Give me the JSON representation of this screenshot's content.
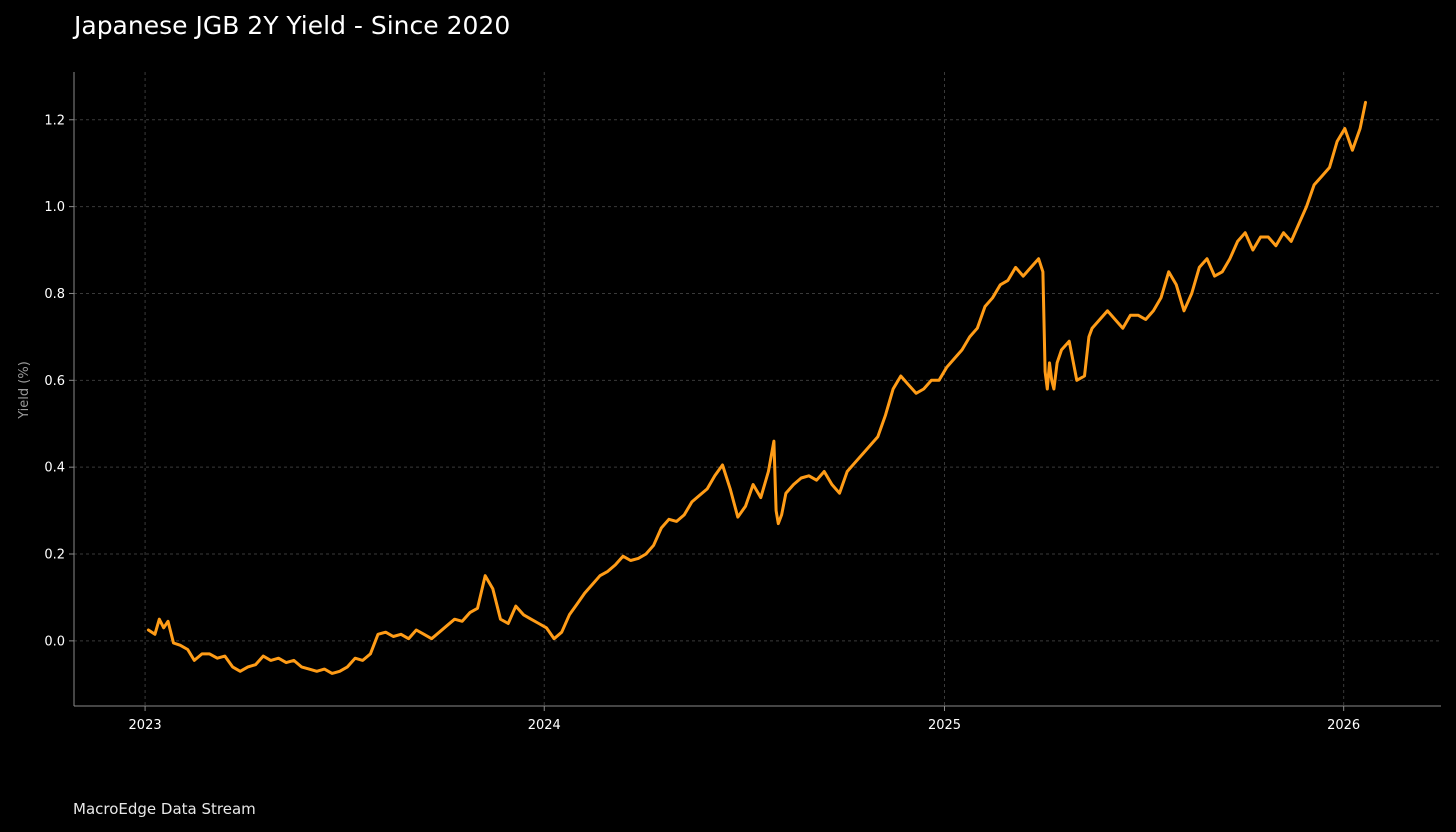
{
  "header": {
    "title": "Japanese JGB 2Y Yield - Since 2020"
  },
  "footer": {
    "source": "MacroEdge Data Stream"
  },
  "colors": {
    "background": "#000000",
    "line": "#FF9C17",
    "axis": "#8a8a8a",
    "grid": "#3a3a3a",
    "text": "#ffffff"
  },
  "chart_data": {
    "type": "line",
    "title": "Japanese JGB 2Y Yield - Since 2020",
    "xlabel": "",
    "ylabel": "Yield (%)",
    "xlim": [
      "2022-10-28",
      "2026-03-31"
    ],
    "ylim": [
      -0.15,
      1.31
    ],
    "x_ticks": [
      "2023",
      "2024",
      "2025",
      "2026"
    ],
    "y_ticks": [
      "0.0",
      "0.2",
      "0.4",
      "0.6",
      "0.8",
      "1.0",
      "1.2"
    ],
    "grid": true,
    "legend": "none",
    "series": [
      {
        "x": [
          "2023-01-04",
          "2023-01-10",
          "2023-01-14",
          "2023-01-18",
          "2023-01-22",
          "2023-01-27",
          "2023-02-02",
          "2023-02-09",
          "2023-02-15",
          "2023-02-22",
          "2023-03-01",
          "2023-03-08",
          "2023-03-15",
          "2023-03-22",
          "2023-03-29",
          "2023-04-05",
          "2023-04-12",
          "2023-04-19",
          "2023-04-26",
          "2023-05-03",
          "2023-05-10",
          "2023-05-17",
          "2023-05-24",
          "2023-05-31",
          "2023-06-07",
          "2023-06-14",
          "2023-06-21",
          "2023-06-28",
          "2023-07-05",
          "2023-07-12",
          "2023-07-19",
          "2023-07-26",
          "2023-08-02",
          "2023-08-09",
          "2023-08-16",
          "2023-08-23",
          "2023-08-30",
          "2023-09-06",
          "2023-09-13",
          "2023-09-20",
          "2023-09-27",
          "2023-10-04",
          "2023-10-11",
          "2023-10-18",
          "2023-10-25",
          "2023-11-01",
          "2023-11-08",
          "2023-11-15",
          "2023-11-22",
          "2023-11-29",
          "2023-12-06",
          "2023-12-13",
          "2023-12-20",
          "2023-12-27",
          "2024-01-03",
          "2024-01-10",
          "2024-01-17",
          "2024-01-24",
          "2024-01-31",
          "2024-02-07",
          "2024-02-14",
          "2024-02-21",
          "2024-02-28",
          "2024-03-06",
          "2024-03-13",
          "2024-03-20",
          "2024-03-27",
          "2024-04-03",
          "2024-04-10",
          "2024-04-17",
          "2024-04-24",
          "2024-05-01",
          "2024-05-08",
          "2024-05-15",
          "2024-05-22",
          "2024-05-29",
          "2024-06-05",
          "2024-06-12",
          "2024-06-19",
          "2024-06-26",
          "2024-07-03",
          "2024-07-10",
          "2024-07-17",
          "2024-07-24",
          "2024-07-29",
          "2024-07-31",
          "2024-08-02",
          "2024-08-05",
          "2024-08-09",
          "2024-08-16",
          "2024-08-23",
          "2024-08-30",
          "2024-09-06",
          "2024-09-13",
          "2024-09-20",
          "2024-09-27",
          "2024-10-04",
          "2024-10-11",
          "2024-10-18",
          "2024-10-25",
          "2024-11-01",
          "2024-11-08",
          "2024-11-15",
          "2024-11-22",
          "2024-11-29",
          "2024-12-06",
          "2024-12-13",
          "2024-12-20",
          "2024-12-27",
          "2025-01-03",
          "2025-01-10",
          "2025-01-17",
          "2025-01-24",
          "2025-01-31",
          "2025-02-07",
          "2025-02-14",
          "2025-02-21",
          "2025-02-28",
          "2025-03-07",
          "2025-03-14",
          "2025-03-21",
          "2025-03-28",
          "2025-04-01",
          "2025-04-03",
          "2025-04-05",
          "2025-04-07",
          "2025-04-09",
          "2025-04-11",
          "2025-04-14",
          "2025-04-18",
          "2025-04-25",
          "2025-05-02",
          "2025-05-09",
          "2025-05-13",
          "2025-05-16",
          "2025-05-23",
          "2025-05-30",
          "2025-06-06",
          "2025-06-13",
          "2025-06-20",
          "2025-06-27",
          "2025-07-04",
          "2025-07-11",
          "2025-07-18",
          "2025-07-25",
          "2025-08-01",
          "2025-08-08",
          "2025-08-15",
          "2025-08-22",
          "2025-08-29",
          "2025-09-05",
          "2025-09-12",
          "2025-09-19",
          "2025-09-26",
          "2025-10-03",
          "2025-10-10",
          "2025-10-17",
          "2025-10-24",
          "2025-10-31",
          "2025-11-07",
          "2025-11-14",
          "2025-11-21",
          "2025-11-28",
          "2025-12-05",
          "2025-12-12",
          "2025-12-19",
          "2025-12-26",
          "2026-01-02",
          "2026-01-09",
          "2026-01-16",
          "2026-01-21"
        ],
        "y": [
          0.025,
          0.015,
          0.05,
          0.03,
          0.045,
          -0.005,
          -0.01,
          -0.02,
          -0.045,
          -0.03,
          -0.03,
          -0.04,
          -0.035,
          -0.06,
          -0.07,
          -0.06,
          -0.055,
          -0.035,
          -0.045,
          -0.04,
          -0.05,
          -0.045,
          -0.06,
          -0.065,
          -0.07,
          -0.065,
          -0.075,
          -0.07,
          -0.06,
          -0.04,
          -0.045,
          -0.03,
          0.015,
          0.02,
          0.01,
          0.015,
          0.005,
          0.025,
          0.015,
          0.005,
          0.02,
          0.035,
          0.05,
          0.045,
          0.065,
          0.075,
          0.15,
          0.12,
          0.05,
          0.04,
          0.08,
          0.06,
          0.05,
          0.04,
          0.03,
          0.005,
          0.02,
          0.06,
          0.085,
          0.11,
          0.13,
          0.15,
          0.16,
          0.175,
          0.195,
          0.185,
          0.19,
          0.2,
          0.22,
          0.26,
          0.28,
          0.275,
          0.29,
          0.32,
          0.335,
          0.35,
          0.38,
          0.405,
          0.35,
          0.285,
          0.31,
          0.36,
          0.33,
          0.39,
          0.46,
          0.3,
          0.27,
          0.29,
          0.34,
          0.36,
          0.375,
          0.38,
          0.37,
          0.39,
          0.36,
          0.34,
          0.39,
          0.41,
          0.43,
          0.45,
          0.47,
          0.52,
          0.58,
          0.61,
          0.59,
          0.57,
          0.58,
          0.6,
          0.6,
          0.63,
          0.65,
          0.67,
          0.7,
          0.72,
          0.77,
          0.79,
          0.82,
          0.83,
          0.86,
          0.84,
          0.86,
          0.88,
          0.85,
          0.62,
          0.58,
          0.64,
          0.6,
          0.58,
          0.64,
          0.67,
          0.69,
          0.6,
          0.61,
          0.7,
          0.72,
          0.74,
          0.76,
          0.74,
          0.72,
          0.75,
          0.75,
          0.74,
          0.76,
          0.79,
          0.85,
          0.82,
          0.76,
          0.8,
          0.86,
          0.88,
          0.84,
          0.85,
          0.88,
          0.92,
          0.94,
          0.9,
          0.93,
          0.93,
          0.91,
          0.94,
          0.92,
          0.96,
          1.0,
          1.05,
          1.07,
          1.09,
          1.15,
          1.18,
          1.13,
          1.18,
          1.24
        ]
      }
    ]
  }
}
